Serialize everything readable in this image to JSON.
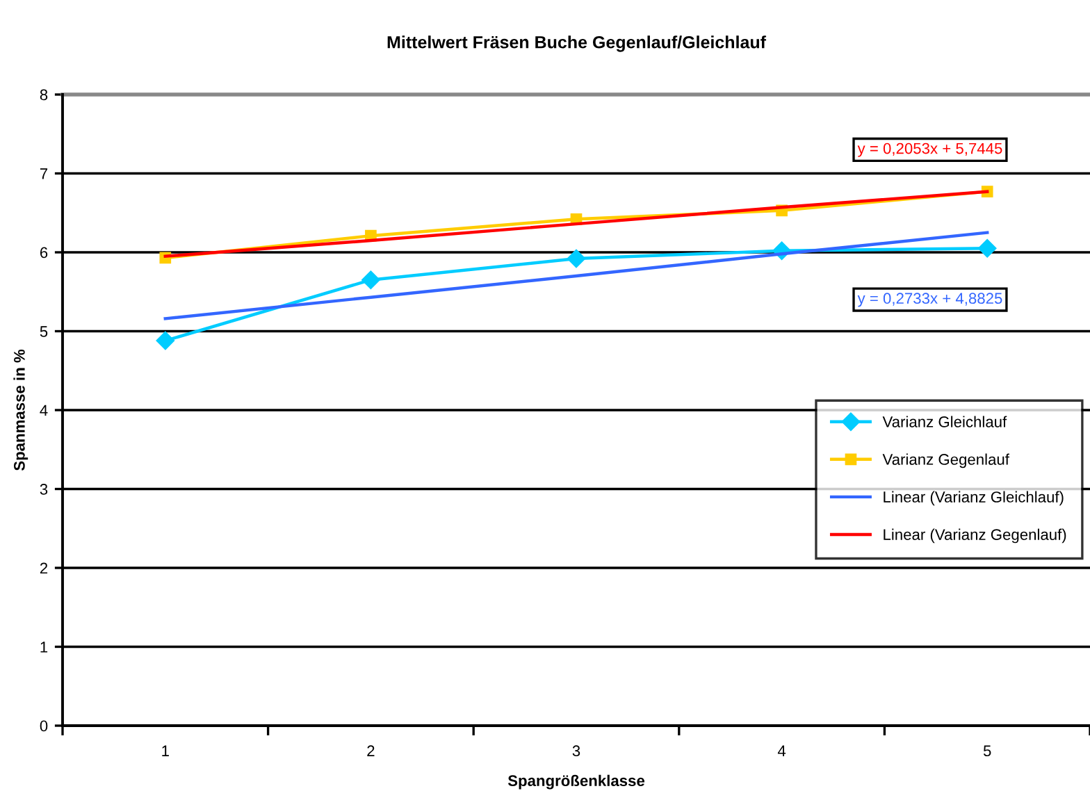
{
  "chart_data": {
    "type": "line",
    "title": "Mittelwert Fräsen Buche Gegenlauf/Gleichlauf",
    "xlabel": "Spangrößenklasse",
    "ylabel": "Spanmasse in %",
    "categories": [
      "1",
      "2",
      "3",
      "4",
      "5"
    ],
    "series": [
      {
        "name": "Varianz Gleichlauf",
        "color": "#00ccff",
        "marker": "diamond",
        "values": [
          4.88,
          5.65,
          5.92,
          6.02,
          6.05
        ]
      },
      {
        "name": "Varianz Gegenlauf",
        "color": "#ffcc00",
        "marker": "square",
        "values": [
          5.93,
          6.21,
          6.42,
          6.53,
          6.77
        ]
      },
      {
        "name": "Linear (Varianz Gleichlauf)",
        "color": "#3366ff",
        "marker": "none",
        "values": [
          5.16,
          5.43,
          5.7,
          5.98,
          6.25
        ]
      },
      {
        "name": "Linear (Varianz Gegenlauf)",
        "color": "#ff0000",
        "marker": "none",
        "values": [
          5.95,
          6.15,
          6.36,
          6.57,
          6.77
        ]
      }
    ],
    "annotations": [
      "y = 0,2053x + 5,7445",
      "y = 0,2733x + 4,8825"
    ],
    "ylim": [
      0,
      8
    ],
    "yticks": [
      0,
      1,
      2,
      3,
      4,
      5,
      6,
      7,
      8
    ],
    "grid": "y",
    "legend": "right"
  }
}
